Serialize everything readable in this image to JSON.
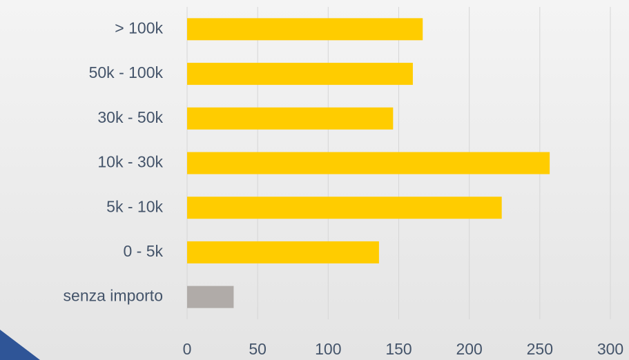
{
  "chart_data": {
    "type": "bar",
    "orientation": "horizontal",
    "categories": [
      "> 100k",
      "50k - 100k",
      "30k - 50k",
      "10k - 30k",
      "5k - 10k",
      "0 - 5k",
      "senza importo"
    ],
    "values": [
      167,
      160,
      146,
      257,
      223,
      136,
      33
    ],
    "colors": [
      "#ffcc00",
      "#ffcc00",
      "#ffcc00",
      "#ffcc00",
      "#ffcc00",
      "#ffcc00",
      "#b0aba8"
    ],
    "xlim": [
      0,
      300
    ],
    "xticks": [
      0,
      50,
      100,
      150,
      200,
      250,
      300
    ],
    "grid": true
  }
}
